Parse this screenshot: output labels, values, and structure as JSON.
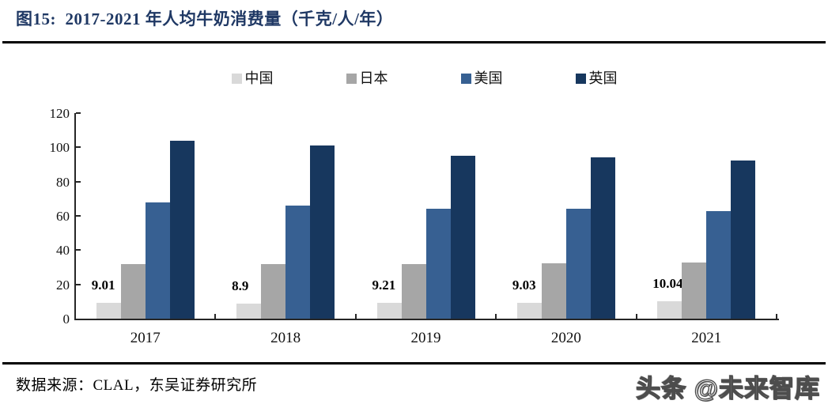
{
  "figure": {
    "title": "图15:  2017-2021 年人均牛奶消费量（千克/人/年）",
    "source": "数据来源：CLAL，东吴证券研究所",
    "watermark": "头条 @未来智库"
  },
  "colors": {
    "title": "#1f3864",
    "axis": "#262626",
    "divider": "#000000",
    "china": "#d9d9d9",
    "japan": "#a6a6a6",
    "usa": "#376092",
    "uk": "#17375e"
  },
  "chart_data": {
    "type": "bar",
    "title": "2017-2021 年人均牛奶消费量（千克/人/年）",
    "categories": [
      "2017",
      "2018",
      "2019",
      "2020",
      "2021"
    ],
    "series": [
      {
        "name": "中国",
        "color": "#d9d9d9",
        "values": [
          9.01,
          8.9,
          9.21,
          9.03,
          10.04
        ],
        "data_labels": [
          "9.01",
          "8.9",
          "9.21",
          "9.03",
          "10.04"
        ]
      },
      {
        "name": "日本",
        "color": "#a6a6a6",
        "values": [
          32,
          32,
          32,
          32.5,
          33
        ]
      },
      {
        "name": "美国",
        "color": "#376092",
        "values": [
          68,
          66,
          64,
          64,
          63
        ]
      },
      {
        "name": "英国",
        "color": "#17375e",
        "values": [
          104,
          101,
          95,
          94,
          92.5
        ]
      }
    ],
    "ylim": [
      0,
      120
    ],
    "yticks": [
      0,
      20,
      40,
      60,
      80,
      100,
      120
    ],
    "ylabel": "",
    "xlabel": "",
    "unit": "千克/人/年",
    "grid": false,
    "legend_position": "top",
    "data_labels_on_series": "中国"
  }
}
